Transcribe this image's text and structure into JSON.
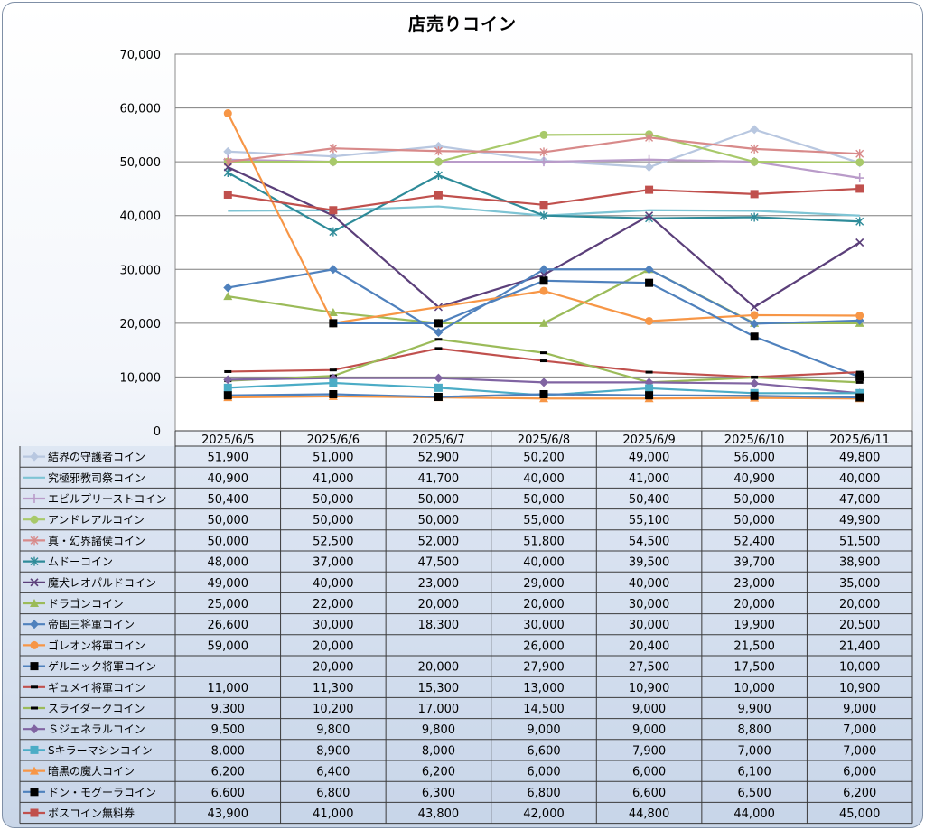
{
  "chart_data": {
    "type": "line",
    "title": "店売りコイン",
    "ylim": [
      0,
      70000
    ],
    "y_ticks": [
      "0",
      "10,000",
      "20,000",
      "30,000",
      "40,000",
      "50,000",
      "60,000",
      "70,000"
    ],
    "grid": "horizontal",
    "legend_placement": "data table below plot",
    "categories": [
      "2025/6/5",
      "2025/6/6",
      "2025/6/7",
      "2025/6/8",
      "2025/6/9",
      "2025/6/10",
      "2025/6/11"
    ],
    "series": [
      {
        "name": "結界の守護者コイン",
        "color": "#b8c7e0",
        "marker": "diamond",
        "values": [
          51900,
          51000,
          52900,
          50200,
          49000,
          56000,
          49800
        ],
        "labels": [
          "51,900",
          "51,000",
          "52,900",
          "50,200",
          "49,000",
          "56,000",
          "49,800"
        ]
      },
      {
        "name": "究極邪教司祭コイン",
        "color": "#7ec4d4",
        "marker": "none",
        "values": [
          40900,
          41000,
          41700,
          40000,
          41000,
          40900,
          40000
        ],
        "labels": [
          "40,900",
          "41,000",
          "41,700",
          "40,000",
          "41,000",
          "40,900",
          "40,000"
        ]
      },
      {
        "name": "エビルプリーストコイン",
        "color": "#b99bc9",
        "marker": "plus",
        "values": [
          50400,
          50000,
          50000,
          50000,
          50400,
          50000,
          47000
        ],
        "labels": [
          "50,400",
          "50,000",
          "50,000",
          "50,000",
          "50,400",
          "50,000",
          "47,000"
        ]
      },
      {
        "name": "アンドレアルコイン",
        "color": "#a8c96a",
        "marker": "circle",
        "values": [
          50000,
          50000,
          50000,
          55000,
          55100,
          50000,
          49900
        ],
        "labels": [
          "50,000",
          "50,000",
          "50,000",
          "55,000",
          "55,100",
          "50,000",
          "49,900"
        ]
      },
      {
        "name": "真・幻界諸侯コイン",
        "color": "#d88a8a",
        "marker": "star",
        "values": [
          50000,
          52500,
          52000,
          51800,
          54500,
          52400,
          51500
        ],
        "labels": [
          "50,000",
          "52,500",
          "52,000",
          "51,800",
          "54,500",
          "52,400",
          "51,500"
        ]
      },
      {
        "name": "ムドーコイン",
        "color": "#2e8b99",
        "marker": "star",
        "values": [
          48000,
          37000,
          47500,
          40000,
          39500,
          39700,
          38900
        ],
        "labels": [
          "48,000",
          "37,000",
          "47,500",
          "40,000",
          "39,500",
          "39,700",
          "38,900"
        ]
      },
      {
        "name": "魔犬レオパルドコイン",
        "color": "#5b3f7a",
        "marker": "x",
        "values": [
          49000,
          40000,
          23000,
          29000,
          40000,
          23000,
          35000
        ],
        "labels": [
          "49,000",
          "40,000",
          "23,000",
          "29,000",
          "40,000",
          "23,000",
          "35,000"
        ]
      },
      {
        "name": "ドラゴンコイン",
        "color": "#9bbb59",
        "marker": "triangle",
        "values": [
          25000,
          22000,
          20000,
          20000,
          30000,
          20000,
          20000
        ],
        "labels": [
          "25,000",
          "22,000",
          "20,000",
          "20,000",
          "30,000",
          "20,000",
          "20,000"
        ]
      },
      {
        "name": "帝国三将軍コイン",
        "color": "#4f81bd",
        "marker": "diamond",
        "values": [
          26600,
          30000,
          18300,
          30000,
          30000,
          19900,
          20500
        ],
        "labels": [
          "26,600",
          "30,000",
          "18,300",
          "30,000",
          "30,000",
          "19,900",
          "20,500"
        ]
      },
      {
        "name": "ゴレオン将軍コイン",
        "color": "#f79646",
        "marker": "circle",
        "values": [
          59000,
          20000,
          null,
          26000,
          20400,
          21500,
          21400
        ],
        "labels": [
          "59,000",
          "20,000",
          "",
          "26,000",
          "20,400",
          "21,500",
          "21,400"
        ]
      },
      {
        "name": "ゲルニック将軍コイン",
        "color": "#4f81bd",
        "marker": "square-black",
        "values": [
          null,
          20000,
          20000,
          27900,
          27500,
          17500,
          10000
        ],
        "labels": [
          "",
          "20,000",
          "20,000",
          "27,900",
          "27,500",
          "17,500",
          "10,000"
        ]
      },
      {
        "name": "ギュメイ将軍コイン",
        "color": "#c0504d",
        "marker": "dash",
        "values": [
          11000,
          11300,
          15300,
          13000,
          10900,
          10000,
          10900
        ],
        "labels": [
          "11,000",
          "11,300",
          "15,300",
          "13,000",
          "10,900",
          "10,000",
          "10,900"
        ]
      },
      {
        "name": "スライダークコイン",
        "color": "#9bbb59",
        "marker": "dash",
        "values": [
          9300,
          10200,
          17000,
          14500,
          9000,
          9900,
          9000
        ],
        "labels": [
          "9,300",
          "10,200",
          "17,000",
          "14,500",
          "9,000",
          "9,900",
          "9,000"
        ]
      },
      {
        "name": "Ｓジェネラルコイン",
        "color": "#8064a2",
        "marker": "diamond",
        "values": [
          9500,
          9800,
          9800,
          9000,
          9000,
          8800,
          7000
        ],
        "labels": [
          "9,500",
          "9,800",
          "9,800",
          "9,000",
          "9,000",
          "8,800",
          "7,000"
        ]
      },
      {
        "name": "Sキラーマシンコイン",
        "color": "#4bacc6",
        "marker": "square",
        "values": [
          8000,
          8900,
          8000,
          6600,
          7900,
          7000,
          7000
        ],
        "labels": [
          "8,000",
          "8,900",
          "8,000",
          "6,600",
          "7,900",
          "7,000",
          "7,000"
        ]
      },
      {
        "name": "暗黒の魔人コイン",
        "color": "#f79646",
        "marker": "triangle",
        "values": [
          6200,
          6400,
          6200,
          6000,
          6000,
          6100,
          6000
        ],
        "labels": [
          "6,200",
          "6,400",
          "6,200",
          "6,000",
          "6,000",
          "6,100",
          "6,000"
        ]
      },
      {
        "name": "ドン・モグーラコイン",
        "color": "#4f81bd",
        "marker": "square-black",
        "values": [
          6600,
          6800,
          6300,
          6800,
          6600,
          6500,
          6200
        ],
        "labels": [
          "6,600",
          "6,800",
          "6,300",
          "6,800",
          "6,600",
          "6,500",
          "6,200"
        ]
      },
      {
        "name": "ボスコイン無料券",
        "color": "#c0504d",
        "marker": "square",
        "values": [
          43900,
          41000,
          43800,
          42000,
          44800,
          44000,
          45000
        ],
        "labels": [
          "43,900",
          "41,000",
          "43,800",
          "42,000",
          "44,800",
          "44,000",
          "45,000"
        ]
      }
    ]
  }
}
